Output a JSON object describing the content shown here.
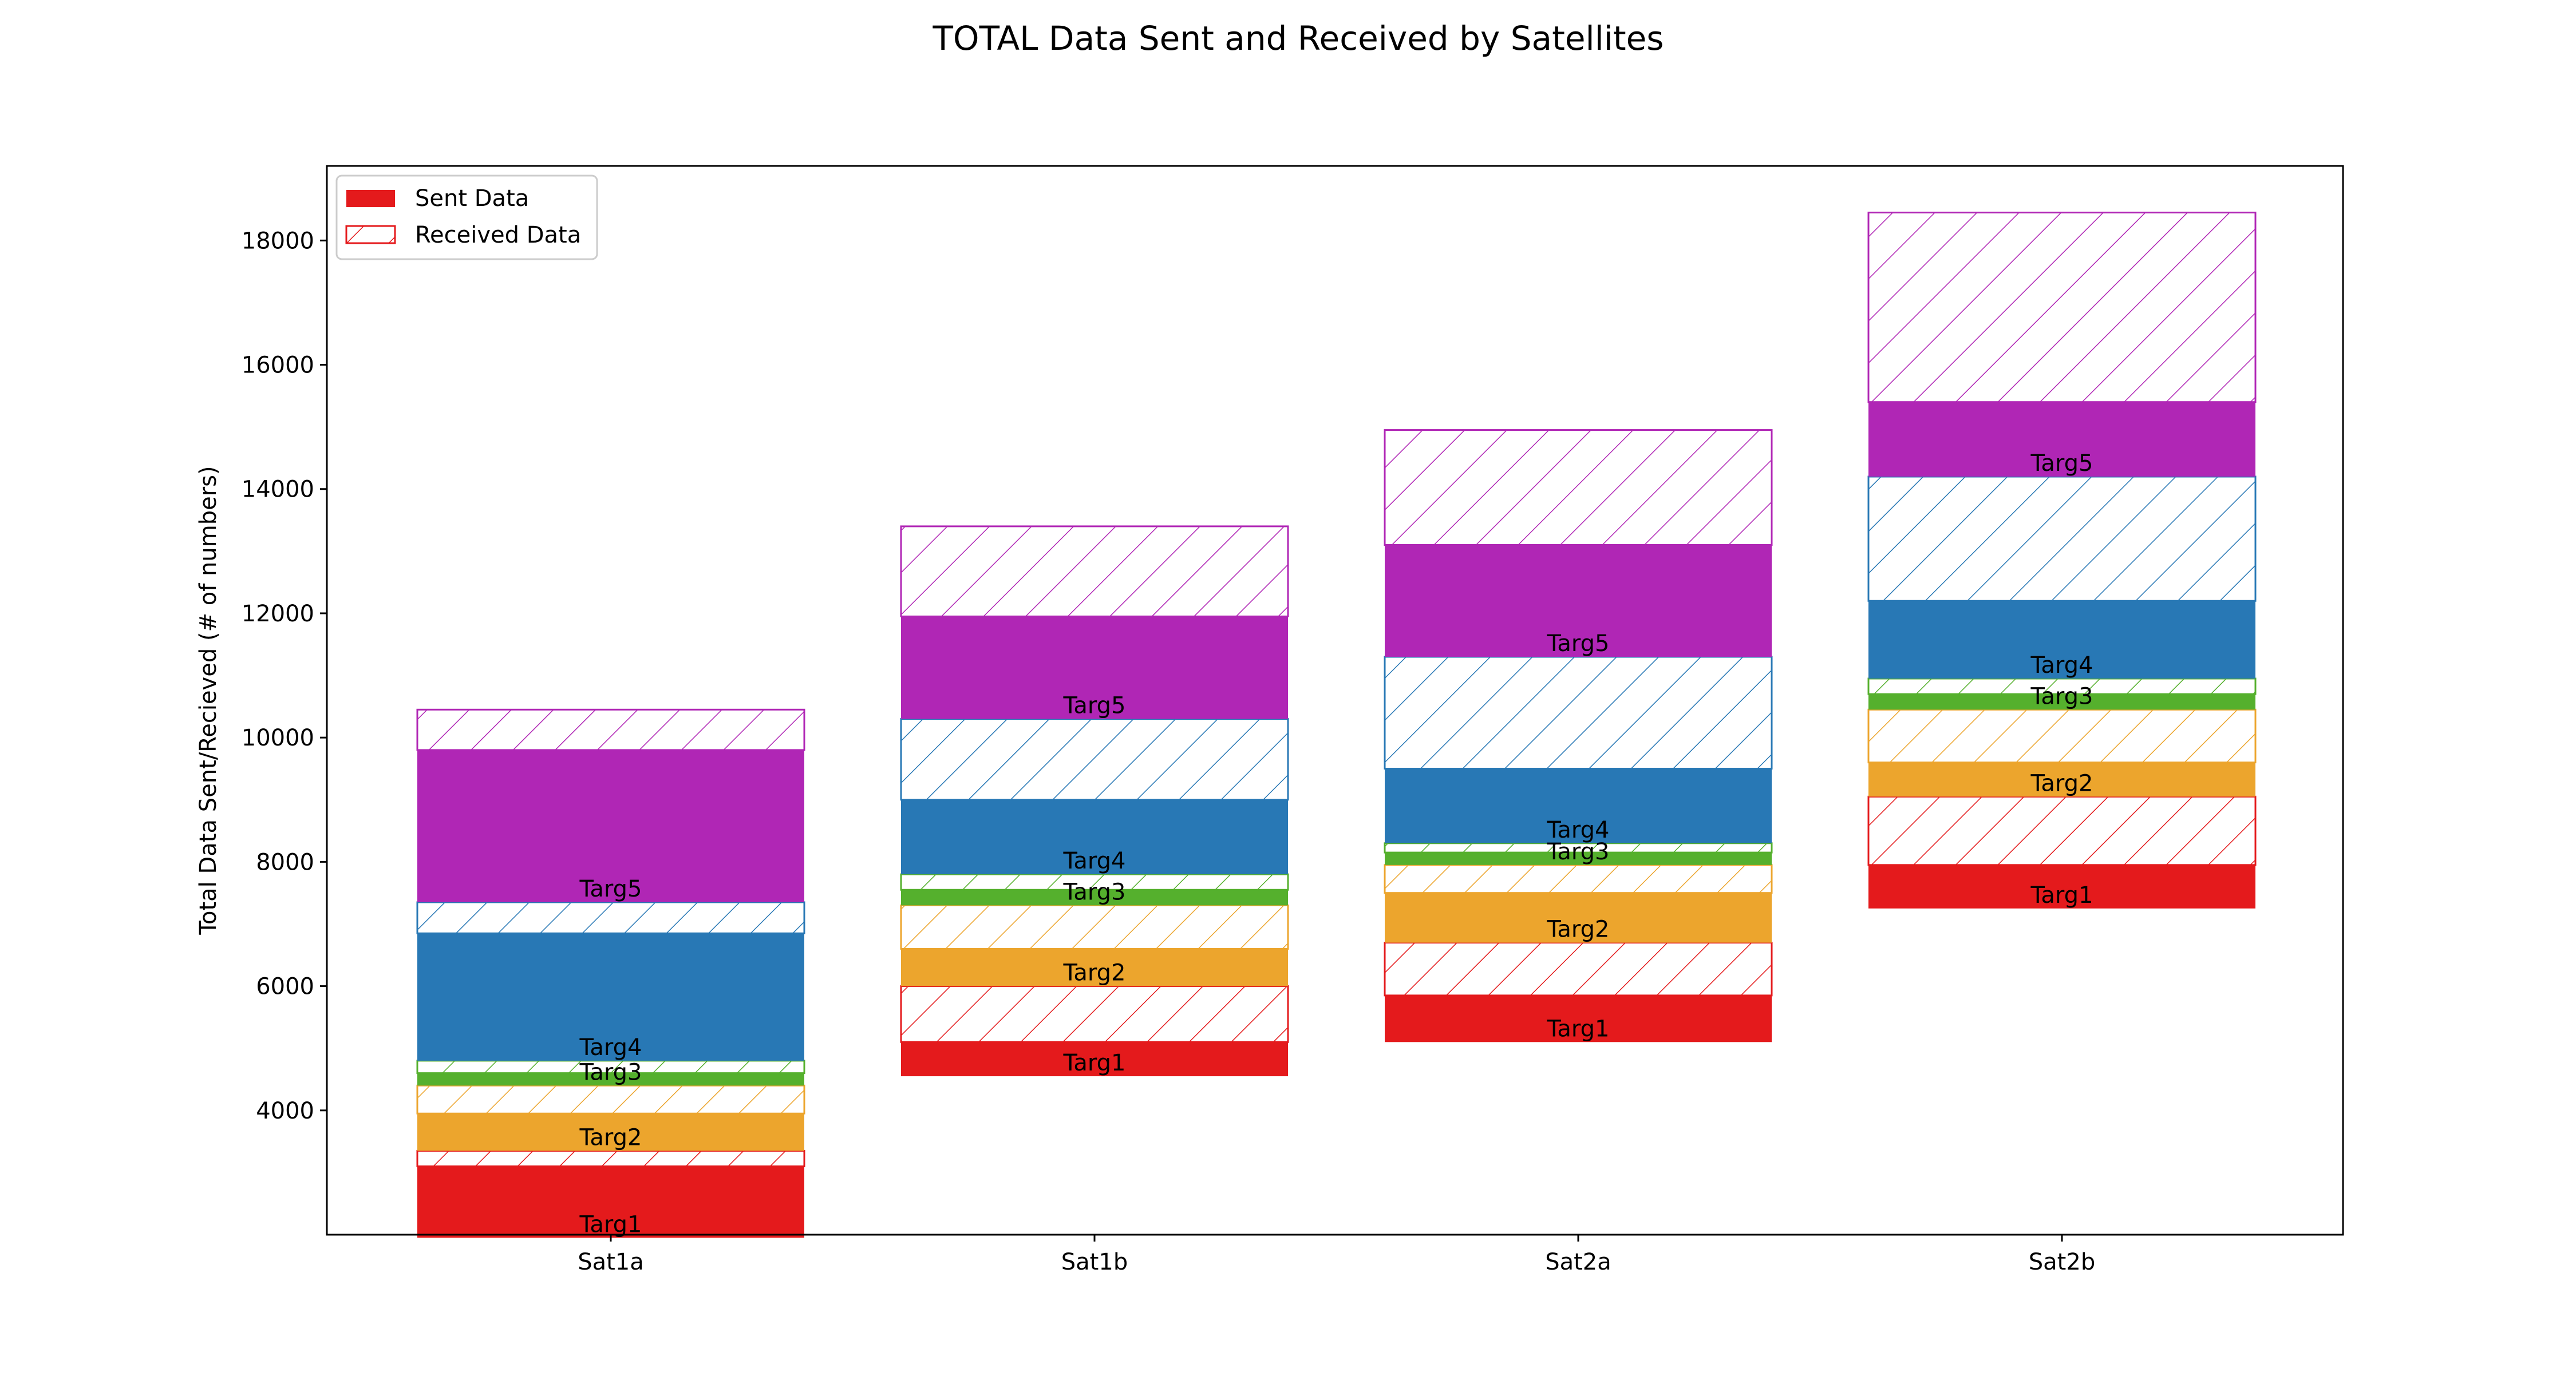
{
  "chart_data": {
    "type": "bar",
    "stacked": true,
    "title": "TOTAL Data Sent and Received by Satellites",
    "ylabel": "Total Data Sent/Recieved (# of numbers)",
    "xlabel": "",
    "categories": [
      "Sat1a",
      "Sat1b",
      "Sat2a",
      "Sat2b"
    ],
    "ylim": [
      2000,
      19200
    ],
    "yticks": [
      4000,
      6000,
      8000,
      10000,
      12000,
      14000,
      16000,
      18000
    ],
    "ytick_labels": [
      "4000",
      "6000",
      "8000",
      "10000",
      "12000",
      "14000",
      "16000",
      "18000"
    ],
    "grid": false,
    "legend": {
      "placement": "top-left",
      "entries": [
        {
          "label": "Sent Data",
          "style": "solid"
        },
        {
          "label": "Received Data",
          "style": "hatched"
        }
      ]
    },
    "series": [
      {
        "label": "Targ1",
        "color": "#e41a1c",
        "base": [
          1950,
          4550,
          5100,
          7250
        ],
        "sent": [
          1150,
          550,
          750,
          700
        ],
        "received": [
          250,
          900,
          850,
          1100
        ]
      },
      {
        "label": "Targ2",
        "color": "#eca52d",
        "sent": [
          600,
          600,
          800,
          550
        ],
        "received": [
          450,
          700,
          450,
          850
        ]
      },
      {
        "label": "Targ3",
        "color": "#55b02d",
        "sent": [
          200,
          250,
          200,
          250
        ],
        "received": [
          200,
          250,
          150,
          250
        ]
      },
      {
        "label": "Targ4",
        "color": "#2878b5",
        "sent": [
          2050,
          1200,
          1200,
          1250
        ],
        "received": [
          500,
          1300,
          1800,
          2000
        ]
      },
      {
        "label": "Targ5",
        "color": "#b026b5",
        "sent": [
          2450,
          1650,
          1800,
          1200
        ],
        "received": [
          650,
          1450,
          1850,
          3050
        ]
      }
    ]
  }
}
